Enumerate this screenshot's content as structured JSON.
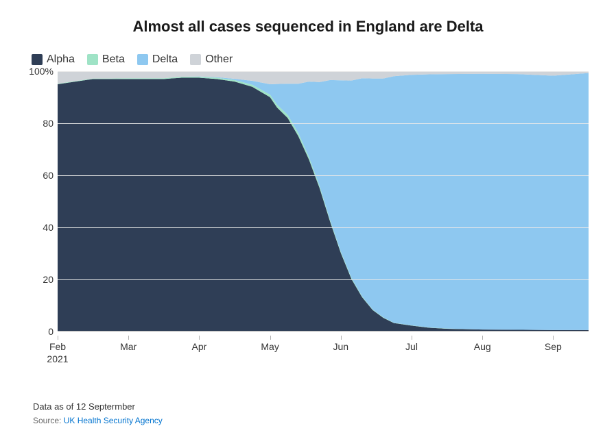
{
  "chart": {
    "type": "stacked-area",
    "title": "Almost all cases sequenced in England are Delta",
    "title_fontsize": 22,
    "title_weight": 700,
    "background_color": "#ffffff",
    "grid_color": "#e8e8e8",
    "axis_color": "#b0b0b0",
    "text_color": "#333333",
    "ylim": [
      0,
      100
    ],
    "ytick_step": 20,
    "ytick_labels": [
      "0",
      "20",
      "40",
      "60",
      "80",
      "100%"
    ],
    "x_categories": [
      "Feb\n2021",
      "Mar",
      "Apr",
      "May",
      "Jun",
      "Jul",
      "Aug",
      "Sep"
    ],
    "x_units_count": 7.5,
    "legend_position": "top-left",
    "series": [
      {
        "name": "Alpha",
        "color": "#2f3e56"
      },
      {
        "name": "Beta",
        "color": "#9fe3c6"
      },
      {
        "name": "Delta",
        "color": "#8ec8f0"
      },
      {
        "name": "Other",
        "color": "#cfd3d8"
      }
    ],
    "data": {
      "x_units": [
        0.0,
        0.25,
        0.5,
        0.75,
        1.0,
        1.25,
        1.5,
        1.75,
        2.0,
        2.25,
        2.5,
        2.75,
        3.0,
        3.1,
        3.25,
        3.4,
        3.55,
        3.7,
        3.85,
        4.0,
        4.15,
        4.3,
        4.45,
        4.6,
        4.75,
        5.0,
        5.25,
        5.5,
        6.0,
        6.5,
        7.0,
        7.5
      ],
      "alpha": [
        95,
        96,
        97,
        97,
        97,
        97,
        97,
        97.5,
        97.5,
        97,
        96,
        94,
        90,
        86,
        82,
        75,
        66,
        55,
        42,
        30,
        20,
        13,
        8,
        5,
        3,
        2,
        1.2,
        0.8,
        0.5,
        0.4,
        0.3,
        0.3
      ],
      "beta": [
        0.2,
        0.2,
        0.2,
        0.2,
        0.3,
        0.3,
        0.3,
        0.4,
        0.4,
        0.5,
        0.6,
        0.8,
        1.0,
        1.1,
        1.2,
        1.2,
        1.0,
        0.8,
        0.6,
        0.5,
        0.4,
        0.3,
        0.2,
        0.2,
        0.1,
        0.1,
        0.1,
        0.1,
        0.0,
        0.0,
        0.0,
        0.0
      ],
      "delta": [
        0,
        0,
        0,
        0,
        0,
        0,
        0,
        0,
        0.1,
        0.2,
        0.5,
        1.5,
        4,
        8,
        12,
        19,
        29,
        40,
        54,
        66,
        76,
        84,
        89,
        92,
        95,
        96.5,
        97.5,
        98,
        98.5,
        98.5,
        98,
        99
      ],
      "other": [
        4.8,
        3.8,
        2.8,
        2.8,
        2.7,
        2.7,
        2.7,
        2.1,
        2.0,
        2.3,
        2.9,
        3.7,
        5.0,
        4.9,
        4.8,
        4.8,
        4.0,
        4.2,
        3.4,
        3.5,
        3.6,
        2.7,
        2.8,
        2.8,
        1.9,
        1.4,
        1.2,
        1.1,
        1.0,
        1.1,
        1.7,
        0.7
      ]
    },
    "footer": {
      "note": "Data as of 12 Septermber",
      "source_prefix": "Source: ",
      "source_link_text": "UK Health Security Agency"
    }
  }
}
